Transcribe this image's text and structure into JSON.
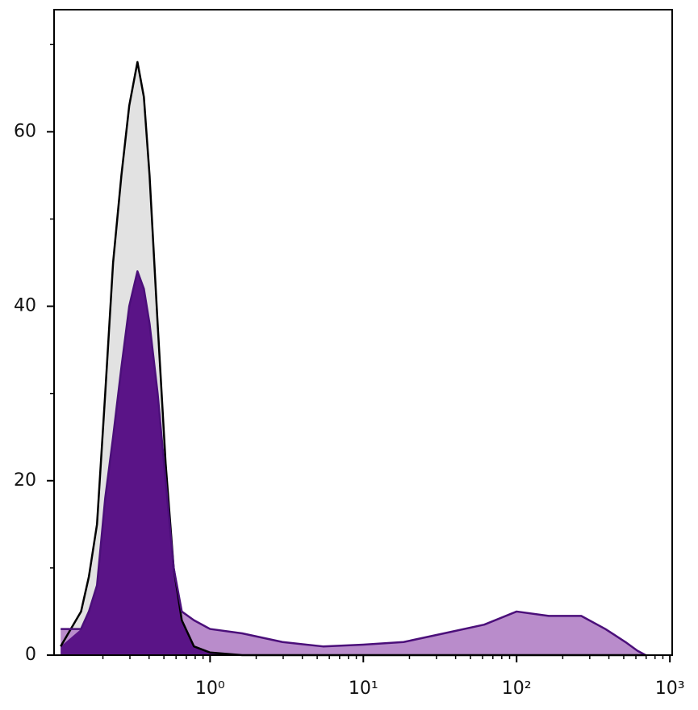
{
  "chart_data": {
    "type": "histogram-overlay",
    "x": [
      0.106,
      0.144,
      0.162,
      0.183,
      0.207,
      0.233,
      0.264,
      0.297,
      0.336,
      0.37,
      0.403,
      0.455,
      0.513,
      0.579,
      0.654,
      0.785,
      1.0,
      1.62,
      2.97,
      5.46,
      10,
      18.3,
      33.6,
      61.5,
      100,
      162,
      264,
      379,
      513,
      615,
      695
    ],
    "series": [
      {
        "color": "#000000",
        "fill": "#e2e2e2",
        "values": [
          1,
          5,
          9,
          15,
          30,
          45,
          55,
          63,
          68,
          64,
          55,
          38,
          22,
          10,
          4,
          1,
          0.3,
          0,
          0,
          0,
          0,
          0,
          0,
          0,
          0,
          0,
          0,
          0,
          0,
          0,
          0
        ]
      },
      {
        "color": "#4b0f7a",
        "fill": "#b98ccb",
        "values": [
          3,
          3,
          5,
          8,
          18,
          25,
          33,
          40,
          44,
          42,
          38,
          30,
          20,
          10,
          5,
          4,
          3,
          2.5,
          1.5,
          1,
          1.2,
          1.5,
          2.5,
          3.5,
          5,
          4.5,
          4.5,
          3,
          1.5,
          0.5,
          0
        ]
      }
    ],
    "overlap_color": "#5a1487",
    "xscale": "log",
    "xlim": [
      0.096,
      1035
    ],
    "xticks": [
      {
        "value": 1,
        "label": "10⁰"
      },
      {
        "value": 10,
        "label": "10¹"
      },
      {
        "value": 100,
        "label": "10²"
      },
      {
        "value": 1000,
        "label": "10³"
      }
    ],
    "xminor": [
      0.2,
      0.3,
      0.4,
      0.5,
      0.6,
      0.7,
      0.8,
      0.9,
      2,
      3,
      4,
      5,
      6,
      7,
      8,
      9,
      20,
      30,
      40,
      50,
      60,
      70,
      80,
      90,
      200,
      300,
      400,
      500,
      600,
      700,
      800,
      900
    ],
    "ylim": [
      0,
      74
    ],
    "yticks": [
      0,
      20,
      40,
      60
    ],
    "yminor": [
      10,
      30,
      50,
      70
    ]
  }
}
